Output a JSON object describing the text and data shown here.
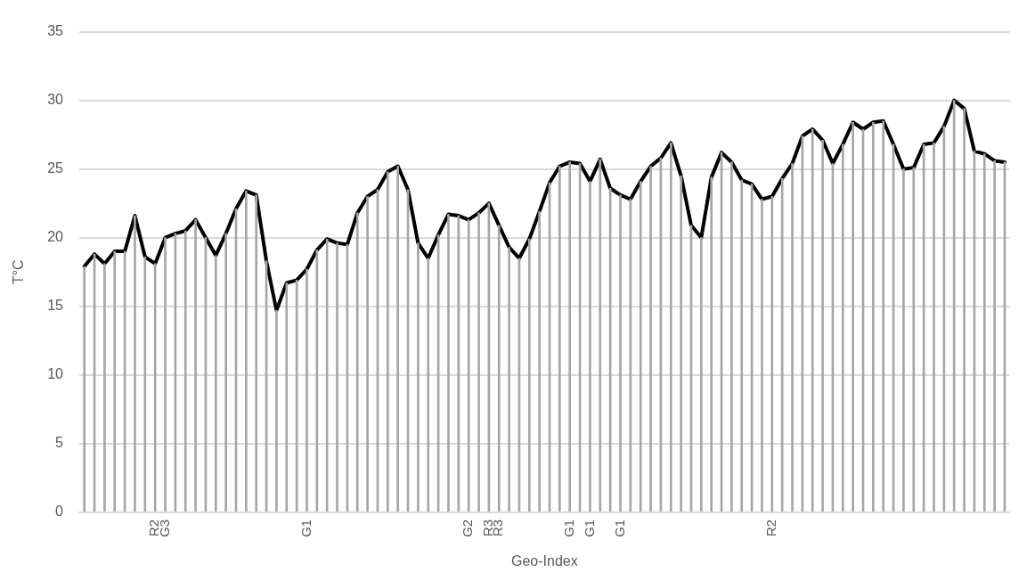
{
  "chart_data": {
    "type": "line",
    "xlabel": "Geo-Index",
    "ylabel": "T°C",
    "categories": [
      null,
      null,
      null,
      null,
      null,
      null,
      null,
      "R2",
      "G3",
      null,
      null,
      null,
      null,
      null,
      null,
      null,
      null,
      null,
      null,
      null,
      null,
      null,
      "G1",
      null,
      null,
      null,
      null,
      null,
      null,
      null,
      null,
      null,
      null,
      null,
      null,
      null,
      null,
      null,
      "G2",
      null,
      "R3",
      "R3",
      null,
      null,
      null,
      null,
      null,
      null,
      "G1",
      null,
      "G1",
      null,
      null,
      "G1",
      null,
      null,
      null,
      null,
      null,
      null,
      null,
      null,
      null,
      null,
      null,
      null,
      null,
      null,
      "R2",
      null,
      null,
      null,
      null,
      null,
      null,
      null,
      null,
      null,
      null,
      null,
      null,
      null,
      null,
      null,
      null,
      null,
      null,
      null,
      null,
      null,
      null,
      null
    ],
    "series": [
      {
        "type": "bar",
        "color": "#a6a6a6",
        "values": [
          17.9,
          18.8,
          18.1,
          19.0,
          19.0,
          21.6,
          18.6,
          18.1,
          20.0,
          20.3,
          20.5,
          21.3,
          20.0,
          18.7,
          20.3,
          22.1,
          23.4,
          23.1,
          18.3,
          14.7,
          16.7,
          16.9,
          17.7,
          19.1,
          19.9,
          19.6,
          19.5,
          21.8,
          23.0,
          23.5,
          24.8,
          25.2,
          23.5,
          19.6,
          18.5,
          20.2,
          21.7,
          21.6,
          21.3,
          21.8,
          22.5,
          20.9,
          19.3,
          18.5,
          19.9,
          21.9,
          24.0,
          25.2,
          25.5,
          25.4,
          24.1,
          25.7,
          23.6,
          23.1,
          22.8,
          24.1,
          25.2,
          25.8,
          26.9,
          24.5,
          20.9,
          20.0,
          24.4,
          26.2,
          25.5,
          24.2,
          23.9,
          22.8,
          23.0,
          24.3,
          25.4,
          27.4,
          27.9,
          27.1,
          25.4,
          26.8,
          28.4,
          27.9,
          28.4,
          28.5,
          26.8,
          25.0,
          25.1,
          26.8,
          26.9,
          28.1,
          30.0,
          29.4,
          26.3,
          26.1,
          25.6,
          25.5
        ]
      },
      {
        "color": "#000000",
        "values": [
          17.9,
          18.8,
          18.1,
          19.0,
          19.0,
          21.6,
          18.6,
          18.1,
          20.0,
          20.3,
          20.5,
          21.3,
          20.0,
          18.7,
          20.3,
          22.1,
          23.4,
          23.1,
          18.3,
          14.7,
          16.7,
          16.9,
          17.7,
          19.1,
          19.9,
          19.6,
          19.5,
          21.8,
          23.0,
          23.5,
          24.8,
          25.2,
          23.5,
          19.6,
          18.5,
          20.2,
          21.7,
          21.6,
          21.3,
          21.8,
          22.5,
          20.9,
          19.3,
          18.5,
          19.9,
          21.9,
          24.0,
          25.2,
          25.5,
          25.4,
          24.1,
          25.7,
          23.6,
          23.1,
          22.8,
          24.1,
          25.2,
          25.8,
          26.9,
          24.5,
          20.9,
          20.0,
          24.4,
          26.2,
          25.5,
          24.2,
          23.9,
          22.8,
          23.0,
          24.3,
          25.4,
          27.4,
          27.9,
          27.1,
          25.4,
          26.8,
          28.4,
          27.9,
          28.4,
          28.5,
          26.8,
          25.0,
          25.1,
          26.8,
          26.9,
          28.1,
          30.0,
          29.4,
          26.3,
          26.1,
          25.6,
          25.5
        ]
      }
    ],
    "ylim": [
      0,
      35
    ],
    "yticks": [
      0,
      5,
      10,
      15,
      20,
      25,
      30,
      35
    ],
    "grid": "y",
    "legend": false,
    "marker": "none",
    "line_style": "solid"
  }
}
